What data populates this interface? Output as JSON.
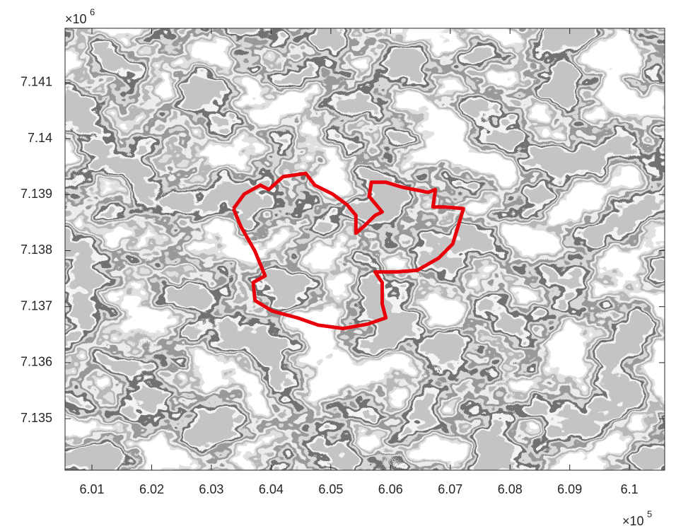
{
  "chart_data": {
    "type": "line",
    "x_multiplier": {
      "base": "×10",
      "power": "5"
    },
    "y_multiplier": {
      "base": "×10",
      "power": "6"
    },
    "xlim": [
      6.0055,
      6.1059
    ],
    "ylim": [
      7.13408,
      7.14197
    ],
    "xticks": [
      6.01,
      6.02,
      6.03,
      6.04,
      6.05,
      6.06,
      6.07,
      6.08,
      6.09,
      6.1
    ],
    "yticks": [
      7.135,
      7.136,
      7.137,
      7.138,
      7.139,
      7.14,
      7.141
    ],
    "color": "#e8000b",
    "x": [
      6.0337,
      6.0355,
      6.0382,
      6.0396,
      6.042,
      6.0458,
      6.0473,
      6.0503,
      6.0527,
      6.0542,
      6.0542,
      6.0556,
      6.0574,
      6.0586,
      6.0564,
      6.0568,
      6.0592,
      6.0621,
      6.0663,
      6.0675,
      6.0671,
      6.0692,
      6.0722,
      6.0704,
      6.0681,
      6.0645,
      6.0609,
      6.0574,
      6.0586,
      6.0586,
      6.0592,
      6.0562,
      6.0521,
      6.0479,
      6.0444,
      6.0402,
      6.0373,
      6.037,
      6.039,
      6.0373,
      6.0349,
      6.0337
    ],
    "values": [
      7.13875,
      7.13901,
      7.13917,
      7.13909,
      7.13932,
      7.13938,
      7.13917,
      7.13901,
      7.13882,
      7.13863,
      7.13831,
      7.13844,
      7.13863,
      7.13869,
      7.13897,
      7.13922,
      7.13922,
      7.13913,
      7.13904,
      7.13909,
      7.13878,
      7.13878,
      7.13875,
      7.13812,
      7.13787,
      7.13765,
      7.13762,
      7.13762,
      7.13743,
      7.13705,
      7.1368,
      7.13669,
      7.13661,
      7.13667,
      7.1368,
      7.13692,
      7.13711,
      7.13743,
      7.13755,
      7.13799,
      7.13844,
      7.13875
    ]
  }
}
